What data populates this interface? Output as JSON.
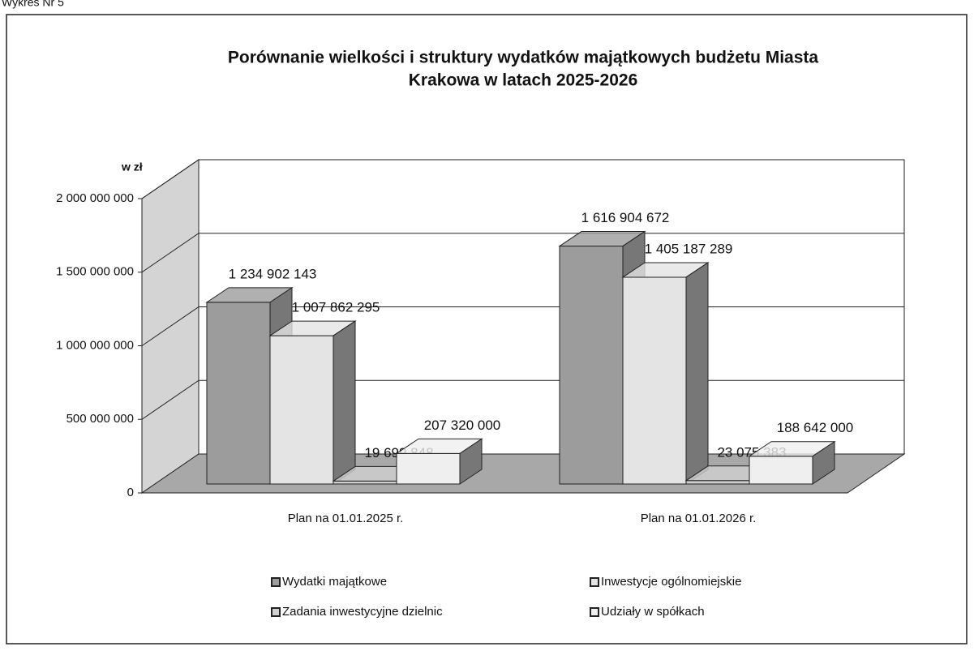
{
  "caption": "Wykres Nr 5",
  "chart_data": {
    "type": "bar3d",
    "title": [
      "Porównanie wielkości i struktury wydatków majątkowych budżetu Miasta",
      "Krakowa w latach 2025-2026"
    ],
    "y_label": "w zł",
    "categories": [
      "Plan na 01.01.2025 r.",
      "Plan na 01.01.2026 r."
    ],
    "series": [
      {
        "name": "Wydatki majątkowe",
        "color": "#9c9c9c",
        "values": [
          1234902143,
          1616904672
        ],
        "value_labels": [
          "1 234 902 143",
          "1 616 904 672"
        ]
      },
      {
        "name": "Inwestycje ogólnomiejskie",
        "color": "#e4e4e4",
        "values": [
          1007862295,
          1405187289
        ],
        "value_labels": [
          "1 007 862 295",
          "1 405 187 289"
        ]
      },
      {
        "name": "Zadania inwestycyjne dzielnic",
        "color": "#cfcfcf",
        "values": [
          19699848,
          23075383
        ],
        "value_labels": [
          "19 699 848",
          "23 075 383"
        ]
      },
      {
        "name": "Udziały w spółkach",
        "color": "#efefef",
        "values": [
          207320000,
          188642000
        ],
        "value_labels": [
          "207 320 000",
          "188 642 000"
        ]
      }
    ],
    "ylim": [
      0,
      2000000000
    ],
    "yticks": [
      0,
      {
        "value": 500000000,
        "label": "500 000 000"
      },
      {
        "value": 1000000000,
        "label": "1 000 000 000"
      },
      {
        "value": 1500000000,
        "label": "1 500 000 000"
      },
      {
        "value": 2000000000,
        "label": "2 000 000 000"
      }
    ],
    "grid": true
  }
}
